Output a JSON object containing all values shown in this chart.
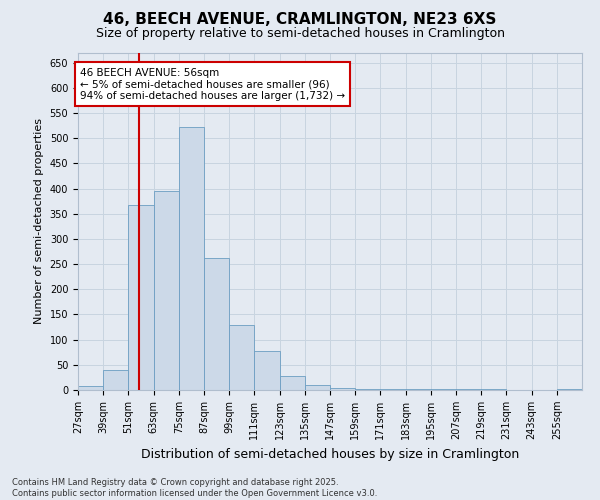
{
  "title": "46, BEECH AVENUE, CRAMLINGTON, NE23 6XS",
  "subtitle": "Size of property relative to semi-detached houses in Cramlington",
  "xlabel": "Distribution of semi-detached houses by size in Cramlington",
  "ylabel": "Number of semi-detached properties",
  "annotation_title": "46 BEECH AVENUE: 56sqm",
  "annotation_line1": "← 5% of semi-detached houses are smaller (96)",
  "annotation_line2": "94% of semi-detached houses are larger (1,732) →",
  "footer1": "Contains HM Land Registry data © Crown copyright and database right 2025.",
  "footer2": "Contains public sector information licensed under the Open Government Licence v3.0.",
  "bins": [
    27,
    39,
    51,
    63,
    75,
    87,
    99,
    111,
    123,
    135,
    147,
    159,
    171,
    183,
    195,
    207,
    219,
    231,
    243,
    255,
    267
  ],
  "counts": [
    7,
    40,
    367,
    395,
    522,
    263,
    130,
    77,
    27,
    10,
    4,
    2,
    2,
    2,
    1,
    1,
    1,
    0,
    0,
    2
  ],
  "bar_color": "#ccd9e8",
  "bar_edge_color": "#6b9dc2",
  "red_line_x": 56,
  "annotation_box_color": "#ffffff",
  "annotation_border_color": "#cc0000",
  "grid_color": "#c8d4e0",
  "background_color": "#e4eaf2",
  "ylim": [
    0,
    670
  ],
  "yticks": [
    0,
    50,
    100,
    150,
    200,
    250,
    300,
    350,
    400,
    450,
    500,
    550,
    600,
    650
  ],
  "title_fontsize": 11,
  "subtitle_fontsize": 9,
  "ylabel_fontsize": 8,
  "xlabel_fontsize": 9,
  "tick_fontsize": 7,
  "footer_fontsize": 6
}
